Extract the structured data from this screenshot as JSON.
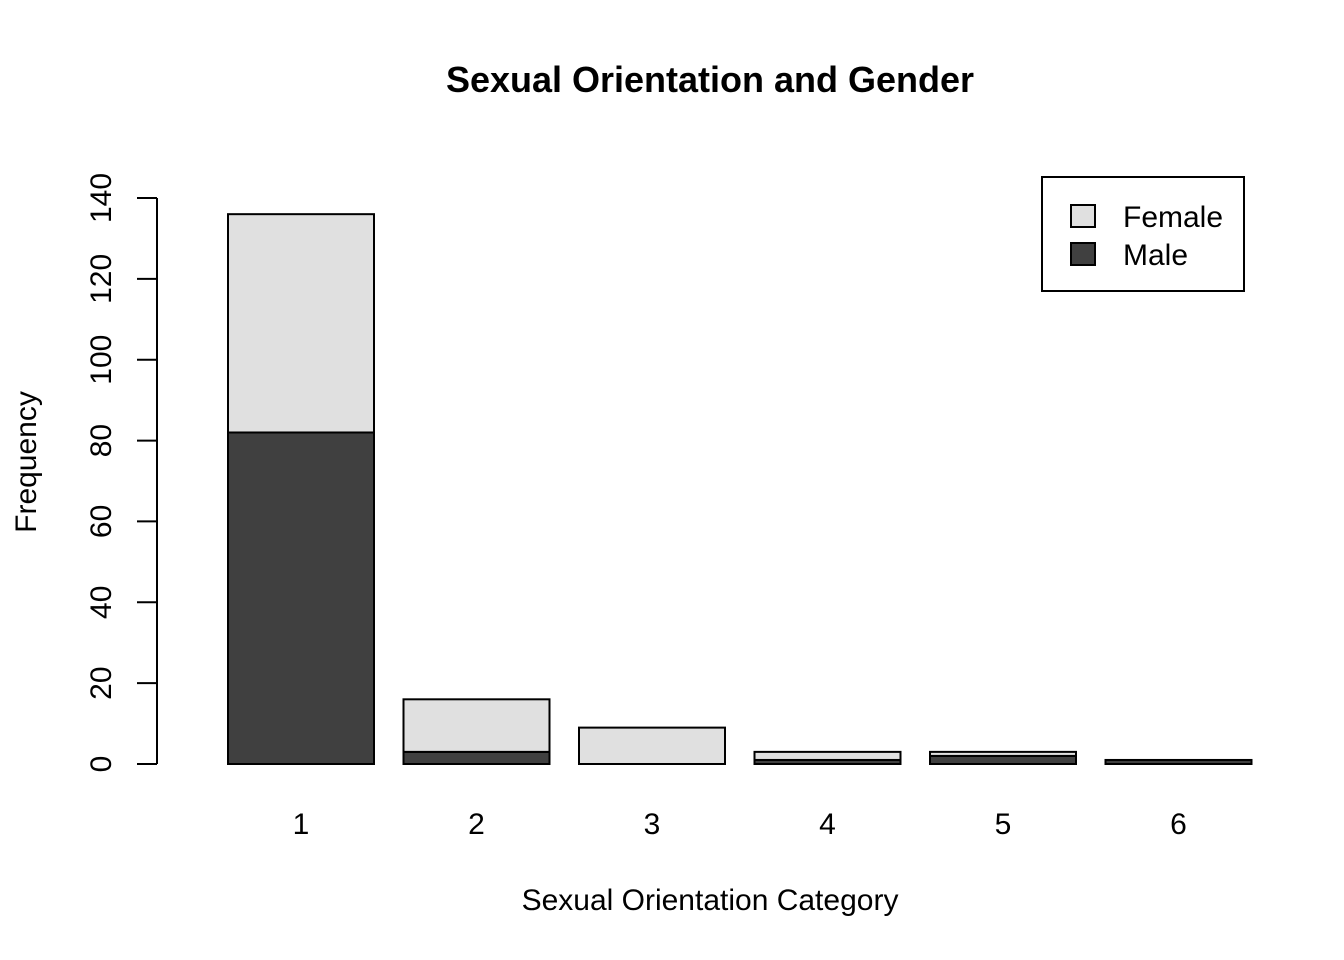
{
  "chart_data": {
    "type": "bar",
    "stacked": true,
    "title": "Sexual Orientation and Gender",
    "xlabel": "Sexual Orientation Category",
    "ylabel": "Frequency",
    "categories": [
      "1",
      "2",
      "3",
      "4",
      "5",
      "6"
    ],
    "series": [
      {
        "name": "Male",
        "values": [
          82,
          3,
          0,
          1,
          2,
          1
        ],
        "color": "#404040"
      },
      {
        "name": "Female",
        "values": [
          54,
          13,
          9,
          2,
          1,
          0
        ],
        "color": "#e0e0e0"
      }
    ],
    "ylim": [
      0,
      140
    ],
    "yticks": [
      0,
      20,
      40,
      60,
      80,
      100,
      120,
      140
    ],
    "grid": false,
    "legend": {
      "position": "top-right",
      "entries": [
        {
          "label": "Female",
          "color": "#e0e0e0"
        },
        {
          "label": "Male",
          "color": "#404040"
        }
      ]
    }
  }
}
